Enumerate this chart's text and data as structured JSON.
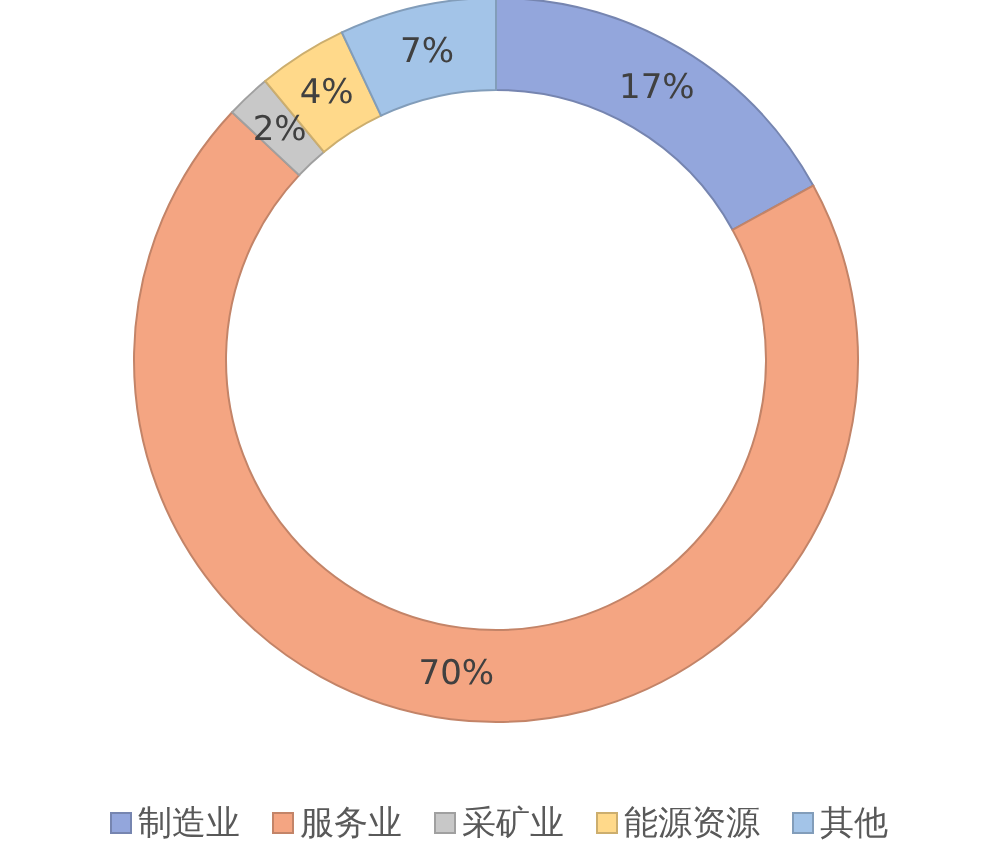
{
  "chart_data": {
    "type": "donut",
    "categories": [
      "制造业",
      "服务业",
      "采矿业",
      "能源资源",
      "其他"
    ],
    "values": [
      17,
      70,
      2,
      4,
      7
    ],
    "value_labels": [
      "17%",
      "70%",
      "2%",
      "4%",
      "7%"
    ],
    "colors": [
      "#93a6dc",
      "#f4a582",
      "#c8c8c8",
      "#ffd98a",
      "#a3c4e8"
    ],
    "legend": "bottom"
  }
}
